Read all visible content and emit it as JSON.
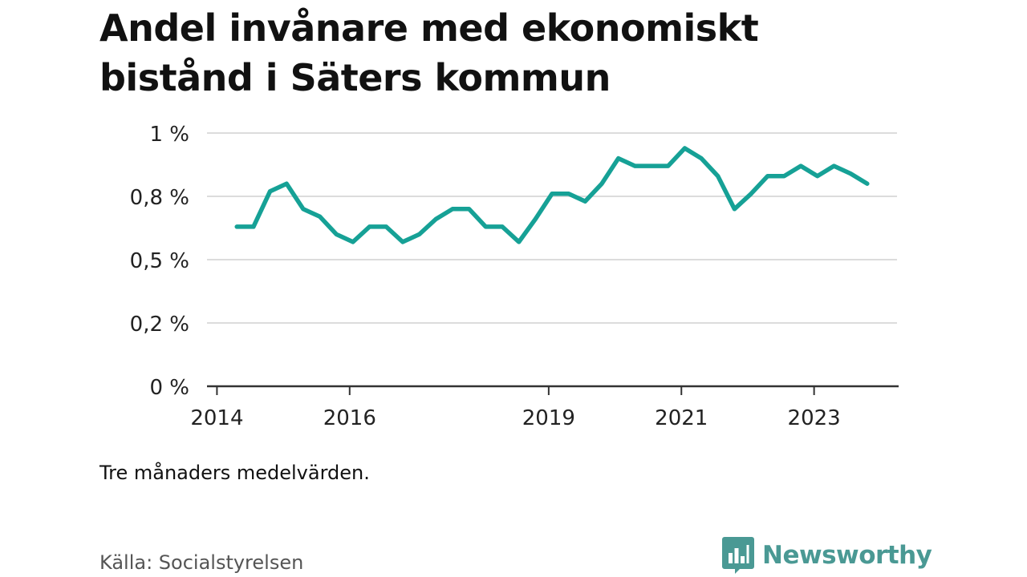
{
  "title": "Andel invånare med ekonomiskt bistånd i Säters kommun",
  "note": "Tre månaders medelvärden.",
  "source": "Källa: Socialstyrelsen",
  "brand": {
    "name": "Newsworthy",
    "icon": "bar-chart-speech-bubble-icon",
    "color": "#4a9994"
  },
  "colors": {
    "line": "#16a196",
    "grid": "#dcdcdc",
    "axis": "#333333",
    "text": "#111111"
  },
  "chart_data": {
    "type": "line",
    "title": "Andel invånare med ekonomiskt bistånd i Säters kommun",
    "xlabel": "",
    "ylabel": "",
    "x_unit": "year",
    "xlim": [
      2013.85,
      2024.25
    ],
    "ylim": [
      0,
      1
    ],
    "y_ticks": [
      {
        "value": 0,
        "label": "0 %"
      },
      {
        "value": 0.25,
        "label": "0,2 %"
      },
      {
        "value": 0.5,
        "label": "0,5 %"
      },
      {
        "value": 0.75,
        "label": "0,8 %"
      },
      {
        "value": 1,
        "label": "1 %"
      }
    ],
    "x_ticks": [
      {
        "value": 2014,
        "label": "2014"
      },
      {
        "value": 2016,
        "label": "2016"
      },
      {
        "value": 2019,
        "label": "2019"
      },
      {
        "value": 2021,
        "label": "2021"
      },
      {
        "value": 2023,
        "label": "2023"
      }
    ],
    "grid": true,
    "legend": "none",
    "series": [
      {
        "x": [
          2014.3,
          2014.55,
          2014.8,
          2015.05,
          2015.3,
          2015.55,
          2015.8,
          2016.05,
          2016.3,
          2016.55,
          2016.8,
          2017.05,
          2017.3,
          2017.55,
          2017.8,
          2018.05,
          2018.3,
          2018.55,
          2018.8,
          2019.05,
          2019.3,
          2019.55,
          2019.8,
          2020.05,
          2020.3,
          2020.55,
          2020.8,
          2021.05,
          2021.3,
          2021.55,
          2021.8,
          2022.05,
          2022.3,
          2022.55,
          2022.8,
          2023.05,
          2023.3,
          2023.55,
          2023.8
        ],
        "y": [
          0.63,
          0.63,
          0.77,
          0.8,
          0.7,
          0.67,
          0.6,
          0.57,
          0.63,
          0.63,
          0.57,
          0.6,
          0.66,
          0.7,
          0.7,
          0.63,
          0.63,
          0.57,
          0.66,
          0.76,
          0.76,
          0.73,
          0.8,
          0.9,
          0.87,
          0.87,
          0.87,
          0.94,
          0.9,
          0.83,
          0.7,
          0.76,
          0.83,
          0.83,
          0.87,
          0.83,
          0.87,
          0.84,
          0.8
        ]
      }
    ]
  }
}
